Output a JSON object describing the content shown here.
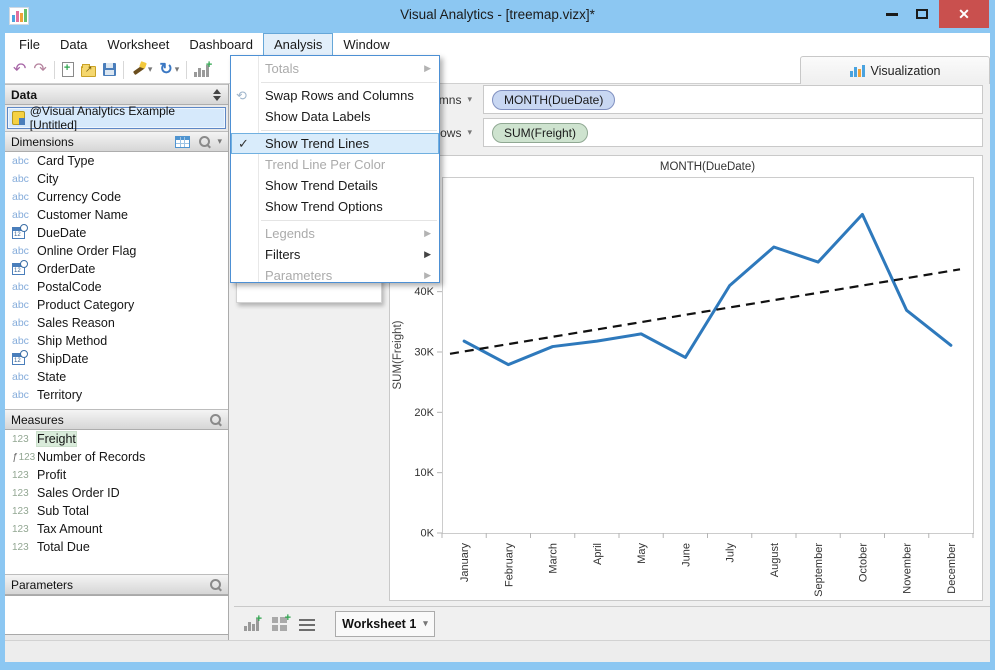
{
  "titlebar": {
    "title": "Visual Analytics - [treemap.vizx]*"
  },
  "menubar": {
    "items": [
      "File",
      "Data",
      "Worksheet",
      "Dashboard",
      "Analysis",
      "Window"
    ],
    "active": "Analysis"
  },
  "toolbar": {
    "icons": [
      "undo",
      "redo",
      "new-file",
      "open-folder",
      "save",
      "magic-wand",
      "refresh",
      "add-visualization"
    ]
  },
  "viz_tab": {
    "label": "Visualization"
  },
  "analysis_menu": {
    "items": [
      {
        "label": "Totals",
        "enabled": false,
        "submenu": true
      },
      {
        "separator": true
      },
      {
        "label": "Swap Rows and Columns",
        "enabled": true,
        "icon": "swap-icon"
      },
      {
        "label": "Show Data Labels",
        "enabled": true
      },
      {
        "separator": true
      },
      {
        "label": "Show Trend Lines",
        "enabled": true,
        "checked": true,
        "highlighted": true
      },
      {
        "label": "Trend Line Per Color",
        "enabled": false
      },
      {
        "label": "Show Trend Details",
        "enabled": true
      },
      {
        "label": "Show Trend Options",
        "enabled": true
      },
      {
        "separator": true
      },
      {
        "label": "Legends",
        "enabled": false,
        "submenu": true
      },
      {
        "label": "Filters",
        "enabled": true,
        "submenu": true
      },
      {
        "label": "Parameters",
        "enabled": false,
        "submenu": true
      }
    ]
  },
  "sidebar": {
    "data_panel": {
      "header": "Data",
      "source": "@Visual Analytics Example [Untitled]"
    },
    "dimensions": {
      "header": "Dimensions",
      "items": [
        {
          "name": "Card Type",
          "type": "text"
        },
        {
          "name": "City",
          "type": "text"
        },
        {
          "name": "Currency Code",
          "type": "text"
        },
        {
          "name": "Customer Name",
          "type": "text"
        },
        {
          "name": "DueDate",
          "type": "date"
        },
        {
          "name": "Online Order Flag",
          "type": "text"
        },
        {
          "name": "OrderDate",
          "type": "date"
        },
        {
          "name": "PostalCode",
          "type": "text"
        },
        {
          "name": "Product Category",
          "type": "text"
        },
        {
          "name": "Sales Reason",
          "type": "text"
        },
        {
          "name": "Ship Method",
          "type": "text"
        },
        {
          "name": "ShipDate",
          "type": "date"
        },
        {
          "name": "State",
          "type": "text"
        },
        {
          "name": "Territory",
          "type": "text"
        }
      ]
    },
    "measures": {
      "header": "Measures",
      "items": [
        {
          "name": "Freight",
          "type": "number",
          "selected": true
        },
        {
          "name": "Number of Records",
          "type": "calculated"
        },
        {
          "name": "Profit",
          "type": "number"
        },
        {
          "name": "Sales Order ID",
          "type": "number"
        },
        {
          "name": "Sub Total",
          "type": "number"
        },
        {
          "name": "Tax Amount",
          "type": "number"
        },
        {
          "name": "Total Due",
          "type": "number"
        }
      ]
    },
    "parameters": {
      "header": "Parameters"
    }
  },
  "shelves": {
    "columns_label": "Columns",
    "columns_pill": "MONTH(DueDate)",
    "rows_label": "Rows",
    "rows_pill": "SUM(Freight)"
  },
  "bottom_bar": {
    "worksheet_tab": "Worksheet 1"
  },
  "chart_data": {
    "type": "line",
    "title": "MONTH(DueDate)",
    "ylabel": "SUM(Freight)",
    "categories": [
      "January",
      "February",
      "March",
      "April",
      "May",
      "June",
      "July",
      "August",
      "September",
      "October",
      "November",
      "December"
    ],
    "series": [
      {
        "name": "SUM(Freight)",
        "values": [
          31.8,
          27.9,
          30.9,
          31.8,
          33.0,
          29.1,
          41.0,
          47.4,
          44.9,
          52.8,
          36.9,
          31.1
        ]
      }
    ],
    "unit": "K",
    "yticks": [
      {
        "v": 0,
        "label": "0K"
      },
      {
        "v": 10,
        "label": "10K"
      },
      {
        "v": 20,
        "label": "20K"
      },
      {
        "v": 30,
        "label": "30K"
      },
      {
        "v": 40,
        "label": "40K"
      }
    ],
    "ylim": [
      0,
      59
    ],
    "trend_line": {
      "start": 29.7,
      "end": 43.7,
      "style": "dashed",
      "color": "#111111"
    },
    "line_color": "#2E79BC",
    "grid": false,
    "legend": "none"
  },
  "colors": {
    "titlebar_blue": "#8CC7F2",
    "close_red": "#C9504E",
    "pill_blue_bg": "#C8D7F2",
    "pill_green_bg": "#CEE3CF",
    "selection_green": "#D9EBDA",
    "menu_highlight": "#D9ECFB"
  }
}
